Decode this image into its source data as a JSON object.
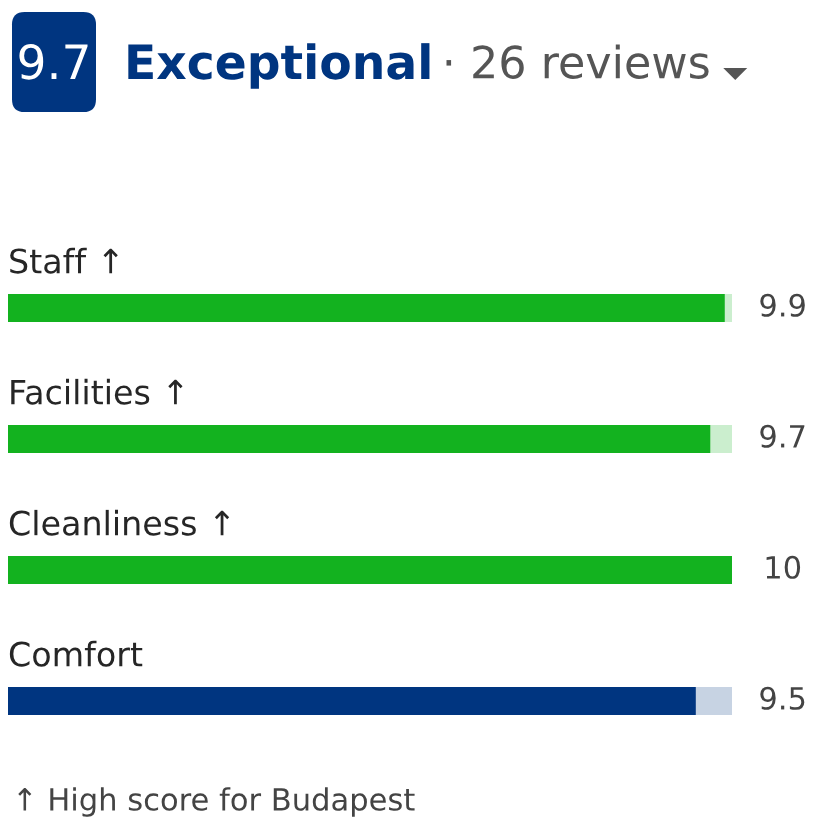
{
  "chart_data": {
    "type": "bar",
    "orientation": "horizontal",
    "title": "Exceptional",
    "subtitle": "· 26 reviews",
    "annotations": [
      "9.7",
      "↑ High score for Budapest"
    ],
    "categories": [
      "Staff ↑",
      "Facilities ↑",
      "Cleanliness ↑",
      "Comfort"
    ],
    "values": [
      9.9,
      9.7,
      10,
      9.5
    ],
    "colors": [
      "#13b21f",
      "#13b21f",
      "#13b21f",
      "#003580"
    ],
    "xlim": [
      0,
      10
    ],
    "tick_labels": false,
    "data_labels": true
  }
}
